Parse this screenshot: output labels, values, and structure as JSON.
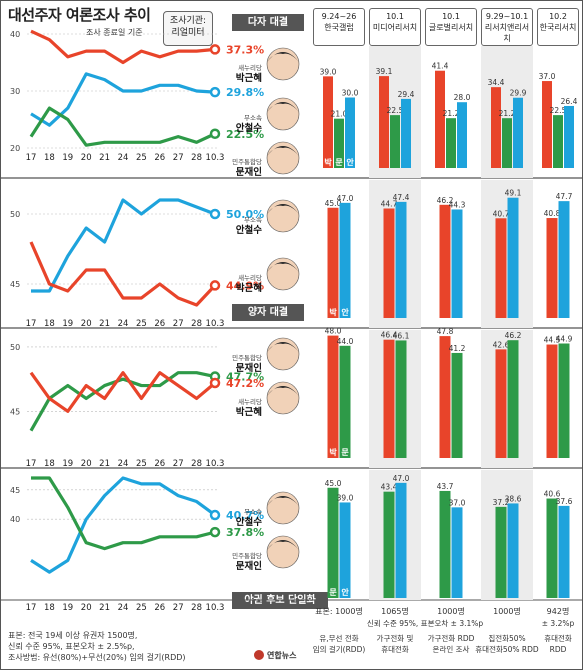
{
  "title": "대선주자 여론조사 추이",
  "agency": {
    "line1": "조사기관:",
    "line2": "리얼미터"
  },
  "survey_note": "조사 종료일 기준",
  "colors": {
    "park": "#e8442a",
    "ahn": "#1ea3dc",
    "moon": "#2e9a48"
  },
  "candidates": {
    "park": {
      "party": "새누리당",
      "name": "박근혜",
      "short": "박"
    },
    "ahn": {
      "party": "무소속",
      "name": "안철수",
      "short": "안"
    },
    "moon": {
      "party": "민주통합당",
      "name": "문재인",
      "short": "문"
    }
  },
  "section_labels": {
    "multi": "다자 대결",
    "two": "양자 대결",
    "single": "야권 후보 단일화"
  },
  "columns": [
    {
      "date": "9.24~26",
      "agency": "한국갤럽"
    },
    {
      "date": "10.1",
      "agency": "미디어리서치"
    },
    {
      "date": "10.1",
      "agency": "글로벌리서치"
    },
    {
      "date": "9.29~10.1",
      "agency": "리서치앤리서치"
    },
    {
      "date": "10.2",
      "agency": "한국리서치"
    }
  ],
  "bottom_table": {
    "samples": [
      "표본: 1000명",
      "1065명",
      "1000명",
      "1000명",
      "942명"
    ],
    "confidence": [
      "신뢰 수준 95%, 표본오차 ± 3.1%p",
      "± 3.2%p"
    ],
    "methods": [
      [
        "유,무선 전화",
        "임의 걸기(RDD)"
      ],
      [
        "가구전화 및",
        "휴대전화"
      ],
      [
        "가구전화 RDD",
        "온라인 조사"
      ],
      [
        "집전화50%",
        "휴대전화50% RDD"
      ],
      [
        "휴대전화",
        "RDD"
      ]
    ]
  },
  "footer": {
    "line1": "표본: 전국 19세 이상 유권자 1500명,",
    "line2": "신뢰 수준 95%, 표본오차 ± 2.5%p,",
    "line3": "조사방법: 유선(80%)+무선(20%) 임의 걸기(RDD)"
  },
  "logo_text": "연합뉴스",
  "chart_data": [
    {
      "type": "line",
      "x": [
        "17",
        "18",
        "19",
        "20",
        "21",
        "24",
        "25",
        "26",
        "27",
        "28",
        "10.3"
      ],
      "ylim": [
        20,
        40
      ],
      "yticks": [
        20,
        30,
        40
      ],
      "series": [
        {
          "name": "박근혜",
          "key": "park",
          "values": [
            40.5,
            39,
            36,
            37,
            37,
            35,
            37,
            36,
            37,
            37,
            37.3
          ],
          "label": "37.3%"
        },
        {
          "name": "안철수",
          "key": "ahn",
          "values": [
            26,
            24,
            27,
            33,
            32,
            30,
            30,
            31,
            31,
            30,
            29.8
          ],
          "label": "29.8%"
        },
        {
          "name": "문재인",
          "key": "moon",
          "values": [
            22,
            27,
            25,
            20.5,
            21,
            21,
            21,
            21,
            22,
            21,
            22.5
          ],
          "label": "22.5%"
        }
      ]
    },
    {
      "type": "bar",
      "categories": [
        "한국갤럽",
        "미디어리서치",
        "글로벌리서치",
        "리서치앤리서치",
        "한국리서치"
      ],
      "series": [
        {
          "name": "박근혜",
          "key": "park",
          "values": [
            39.0,
            39.1,
            41.4,
            34.4,
            37.0
          ]
        },
        {
          "name": "문재인",
          "key": "moon",
          "values": [
            21.0,
            22.5,
            21.2,
            21.2,
            22.5
          ]
        },
        {
          "name": "안철수",
          "key": "ahn",
          "values": [
            30.0,
            29.4,
            28.0,
            29.9,
            26.4
          ]
        }
      ]
    },
    {
      "type": "line",
      "x": [
        "17",
        "18",
        "19",
        "20",
        "21",
        "24",
        "25",
        "26",
        "27",
        "28",
        "10.3"
      ],
      "ylim": [
        43,
        51
      ],
      "yticks": [
        45,
        50
      ],
      "series": [
        {
          "name": "안철수",
          "key": "ahn",
          "values": [
            44.5,
            44.5,
            47,
            49,
            48,
            51,
            50,
            51,
            51,
            50.5,
            50.0
          ],
          "label": "50.0%"
        },
        {
          "name": "박근혜",
          "key": "park",
          "values": [
            48,
            45,
            44.5,
            46,
            46,
            44,
            44,
            45,
            44,
            43.5,
            44.9
          ],
          "label": "44.9%"
        }
      ]
    },
    {
      "type": "bar",
      "categories": [
        "한국갤럽",
        "미디어리서치",
        "글로벌리서치",
        "리서치앤리서치",
        "한국리서치"
      ],
      "series": [
        {
          "name": "박근혜",
          "key": "park",
          "values": [
            45.0,
            44.7,
            46.2,
            40.7,
            40.8
          ]
        },
        {
          "name": "안철수",
          "key": "ahn",
          "values": [
            47.0,
            47.4,
            44.3,
            49.1,
            47.7
          ]
        }
      ]
    },
    {
      "type": "line",
      "x": [
        "17",
        "18",
        "19",
        "20",
        "21",
        "24",
        "25",
        "26",
        "27",
        "28",
        "10.3"
      ],
      "ylim": [
        42,
        51
      ],
      "yticks": [
        45,
        50
      ],
      "series": [
        {
          "name": "문재인",
          "key": "moon",
          "values": [
            43.5,
            46,
            47,
            46,
            47,
            47.5,
            47,
            47,
            48,
            48,
            47.7
          ],
          "label": "47.7%"
        },
        {
          "name": "박근혜",
          "key": "park",
          "values": [
            48,
            46,
            45,
            47,
            46,
            48,
            46,
            48,
            47,
            46,
            47.2
          ],
          "label": "47.2%"
        }
      ]
    },
    {
      "type": "bar",
      "categories": [
        "한국갤럽",
        "미디어리서치",
        "글로벌리서치",
        "리서치앤리서치",
        "한국리서치"
      ],
      "series": [
        {
          "name": "박근혜",
          "key": "park",
          "values": [
            48.0,
            46.4,
            47.8,
            42.6,
            44.5
          ]
        },
        {
          "name": "문재인",
          "key": "moon",
          "values": [
            44.0,
            46.1,
            41.2,
            46.2,
            44.9
          ]
        }
      ]
    },
    {
      "type": "line",
      "x": [
        "17",
        "18",
        "19",
        "20",
        "21",
        "24",
        "25",
        "26",
        "27",
        "28",
        "10.3"
      ],
      "ylim": [
        30,
        47
      ],
      "yticks": [
        40,
        45
      ],
      "series": [
        {
          "name": "안철수",
          "key": "ahn",
          "values": [
            33,
            31,
            33,
            40,
            44,
            47,
            46,
            46,
            44,
            43,
            40.7
          ],
          "label": "40.7%"
        },
        {
          "name": "문재인",
          "key": "moon",
          "values": [
            47,
            47,
            42,
            36,
            35,
            36,
            36,
            37,
            37,
            37,
            37.8
          ],
          "label": "37.8%"
        }
      ]
    },
    {
      "type": "bar",
      "categories": [
        "한국갤럽",
        "미디어리서치",
        "글로벌리서치",
        "리서치앤리서치",
        "한국리서치"
      ],
      "series": [
        {
          "name": "문재인",
          "key": "moon",
          "values": [
            45.0,
            43.4,
            43.7,
            37.2,
            40.6
          ]
        },
        {
          "name": "안철수",
          "key": "ahn",
          "values": [
            39.0,
            47.0,
            37.0,
            38.6,
            37.6
          ]
        }
      ]
    }
  ]
}
